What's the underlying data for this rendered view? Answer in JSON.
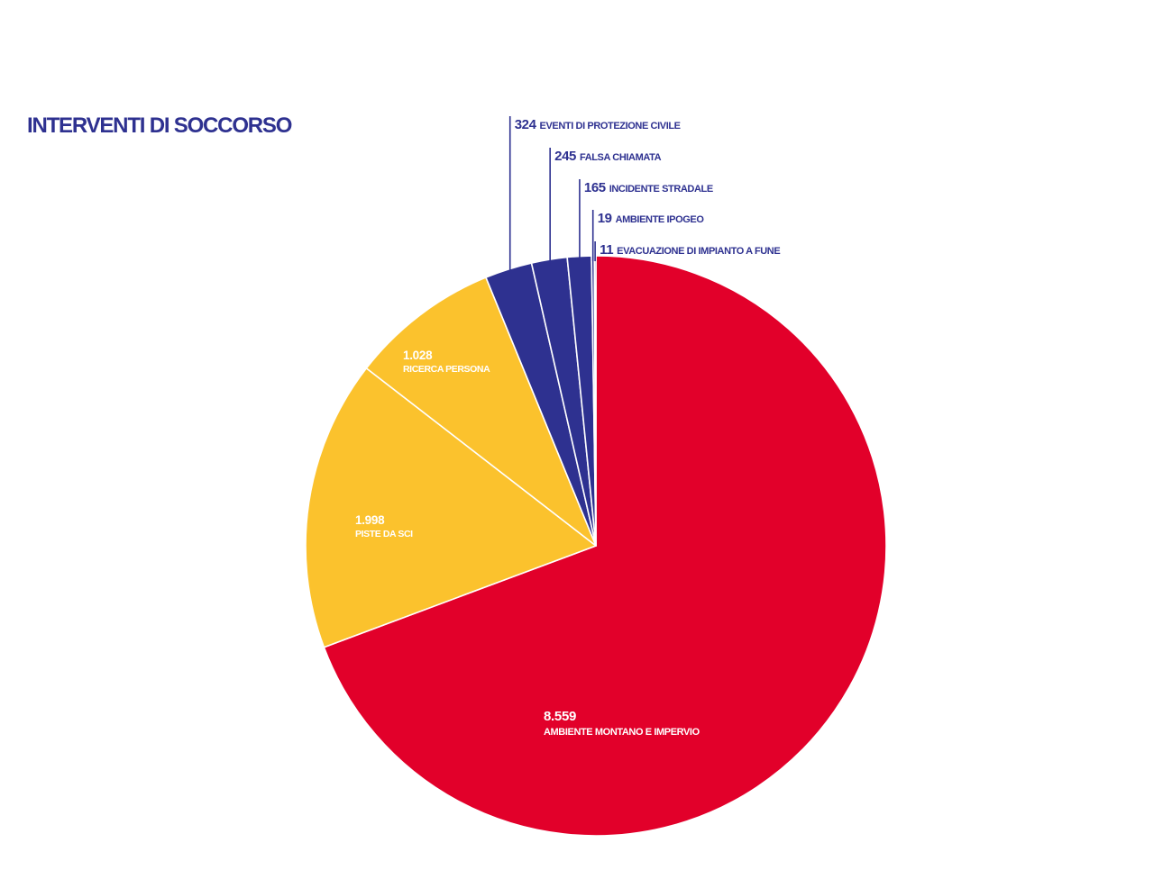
{
  "title": "INTERVENTI DI SOCCORSO",
  "colors": {
    "red": "#e2002a",
    "yellow": "#fbc22d",
    "navy": "#2e3190",
    "white": "#ffffff"
  },
  "chart_data": {
    "type": "pie",
    "title": "INTERVENTI DI SOCCORSO",
    "start": "12 o'clock",
    "direction": "clockwise",
    "slices": [
      {
        "value": 8559,
        "value_label": "8.559",
        "label": "AMBIENTE MONTANO E IMPERVIO",
        "color": "#e2002a",
        "label_style": "inside"
      },
      {
        "value": 1998,
        "value_label": "1.998",
        "label": "PISTE DA SCI",
        "color": "#fbc22d",
        "label_style": "inside"
      },
      {
        "value": 1028,
        "value_label": "1.028",
        "label": "RICERCA PERSONA",
        "color": "#fbc22d",
        "label_style": "inside"
      },
      {
        "value": 324,
        "value_label": "324",
        "label": "EVENTI DI PROTEZIONE CIVILE",
        "color": "#2e3190",
        "label_style": "callout"
      },
      {
        "value": 245,
        "value_label": "245",
        "label": "FALSA CHIAMATA",
        "color": "#2e3190",
        "label_style": "callout"
      },
      {
        "value": 165,
        "value_label": "165",
        "label": "INCIDENTE STRADALE",
        "color": "#2e3190",
        "label_style": "callout"
      },
      {
        "value": 19,
        "value_label": "19",
        "label": "AMBIENTE IPOGEO",
        "color": "#2e3190",
        "label_style": "callout"
      },
      {
        "value": 11,
        "value_label": "11",
        "label": "EVACUAZIONE DI IMPIANTO A FUNE",
        "color": "#2e3190",
        "label_style": "callout"
      }
    ]
  }
}
